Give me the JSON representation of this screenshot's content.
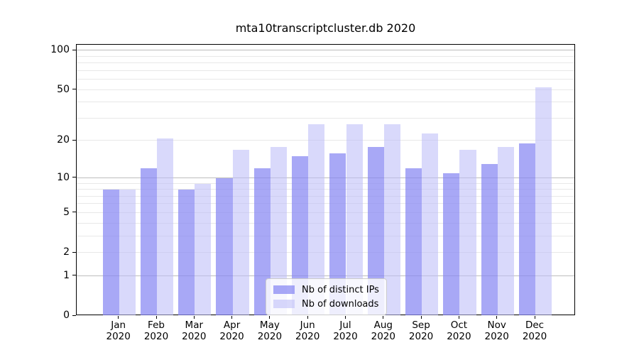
{
  "chart_data": {
    "type": "bar",
    "title": "mta10transcriptcluster.db 2020",
    "categories": [
      "Jan",
      "Feb",
      "Mar",
      "Apr",
      "May",
      "Jun",
      "Jul",
      "Aug",
      "Sep",
      "Oct",
      "Nov",
      "Dec"
    ],
    "x_year_label": "2020",
    "series": [
      {
        "name": "Nb of distinct IPs",
        "color": "rgba(134,134,242,0.72)",
        "values": [
          8,
          12,
          8,
          10,
          12,
          15,
          16,
          18,
          12,
          11,
          13,
          19
        ]
      },
      {
        "name": "Nb of downloads",
        "color": "rgba(190,190,248,0.58)",
        "values": [
          8,
          21,
          9,
          17,
          18,
          27,
          27,
          27,
          23,
          17,
          18,
          52
        ]
      }
    ],
    "y_axis": {
      "scale": "log10(1+value)",
      "tick_values": [
        0,
        1,
        2,
        5,
        10,
        20,
        50,
        100
      ],
      "tick_labels": [
        "0",
        "1",
        "2",
        "5",
        "10",
        "20",
        "50",
        "100"
      ],
      "major_gridlines": [
        1,
        10,
        100
      ],
      "minor_gridlines": [
        2,
        3,
        4,
        5,
        6,
        7,
        8,
        9,
        20,
        30,
        40,
        50,
        60,
        70,
        80,
        90
      ],
      "ylim": [
        0,
        111
      ]
    },
    "xlabel": "",
    "ylabel": "",
    "grid": true,
    "legend": {
      "position": "lower center",
      "entries": [
        "Nb of distinct IPs",
        "Nb of downloads"
      ]
    }
  },
  "colors": {
    "major_grid": "#bdbdbd",
    "minor_grid": "#e8e8e8",
    "spine": "#000000",
    "text": "#000000",
    "legend_bg": "rgba(255,255,255,0.8)",
    "legend_border": "#cccccc"
  }
}
